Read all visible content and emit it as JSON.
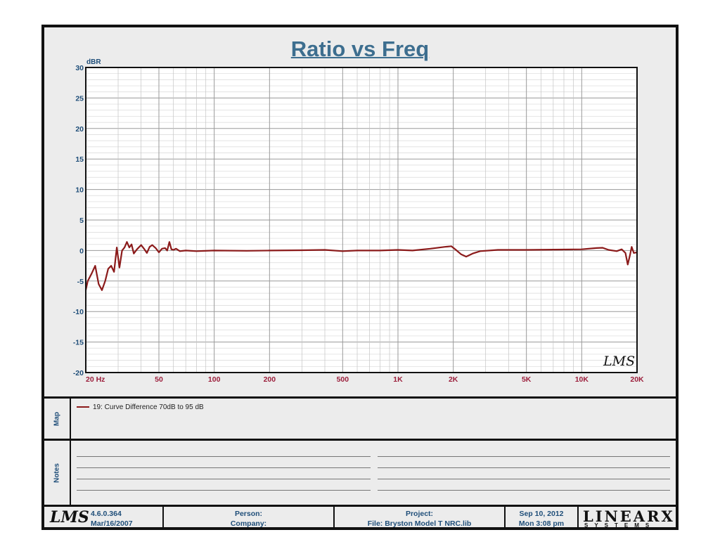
{
  "title": "Ratio vs Freq",
  "chart_data": {
    "type": "line",
    "title": "Ratio vs Freq",
    "ylabel": "dBR",
    "xscale": "log",
    "xlim": [
      20,
      20000
    ],
    "ylim": [
      -20,
      30
    ],
    "yticks": [
      30,
      25,
      20,
      15,
      10,
      5,
      0,
      -5,
      -10,
      -15,
      -20
    ],
    "xticks": [
      {
        "value": 20,
        "label": "20  Hz"
      },
      {
        "value": 50,
        "label": "50"
      },
      {
        "value": 100,
        "label": "100"
      },
      {
        "value": 200,
        "label": "200"
      },
      {
        "value": 500,
        "label": "500"
      },
      {
        "value": 1000,
        "label": "1K"
      },
      {
        "value": 2000,
        "label": "2K"
      },
      {
        "value": 5000,
        "label": "5K"
      },
      {
        "value": 10000,
        "label": "10K"
      },
      {
        "value": 20000,
        "label": "20K"
      }
    ],
    "grid": true,
    "series": [
      {
        "name": "19: Curve Difference 70dB to 95 dB",
        "color": "#8b1a1a",
        "points": [
          [
            20,
            -6.5
          ],
          [
            20.5,
            -5.0
          ],
          [
            21.5,
            -3.8
          ],
          [
            22.5,
            -2.5
          ],
          [
            23.5,
            -5.5
          ],
          [
            24.5,
            -6.5
          ],
          [
            25.5,
            -5.0
          ],
          [
            26.5,
            -3.0
          ],
          [
            27.5,
            -2.5
          ],
          [
            28.5,
            -3.5
          ],
          [
            29.5,
            0.5
          ],
          [
            30.5,
            -2.8
          ],
          [
            31.5,
            0.0
          ],
          [
            32.5,
            0.5
          ],
          [
            33.5,
            1.4
          ],
          [
            34.5,
            0.5
          ],
          [
            35.5,
            1.0
          ],
          [
            36.5,
            -0.5
          ],
          [
            38,
            0.2
          ],
          [
            40,
            0.9
          ],
          [
            41.5,
            0.3
          ],
          [
            43,
            -0.4
          ],
          [
            44.5,
            0.6
          ],
          [
            46,
            0.9
          ],
          [
            48,
            0.4
          ],
          [
            50,
            -0.3
          ],
          [
            52,
            0.3
          ],
          [
            54,
            0.4
          ],
          [
            55.5,
            0.0
          ],
          [
            57,
            1.4
          ],
          [
            58.5,
            0.2
          ],
          [
            60,
            0.1
          ],
          [
            62,
            0.3
          ],
          [
            65,
            -0.1
          ],
          [
            70,
            0.0
          ],
          [
            80,
            -0.1
          ],
          [
            100,
            0.0
          ],
          [
            150,
            -0.05
          ],
          [
            200,
            0.0
          ],
          [
            300,
            0.05
          ],
          [
            400,
            0.1
          ],
          [
            500,
            -0.1
          ],
          [
            600,
            0.0
          ],
          [
            800,
            0.0
          ],
          [
            1000,
            0.1
          ],
          [
            1200,
            0.0
          ],
          [
            1500,
            0.3
          ],
          [
            1800,
            0.6
          ],
          [
            1950,
            0.7
          ],
          [
            2050,
            0.2
          ],
          [
            2200,
            -0.6
          ],
          [
            2350,
            -1.0
          ],
          [
            2550,
            -0.5
          ],
          [
            2800,
            -0.1
          ],
          [
            3500,
            0.1
          ],
          [
            5000,
            0.1
          ],
          [
            7000,
            0.15
          ],
          [
            10000,
            0.2
          ],
          [
            12000,
            0.4
          ],
          [
            13000,
            0.45
          ],
          [
            14000,
            0.1
          ],
          [
            15500,
            -0.1
          ],
          [
            16500,
            0.2
          ],
          [
            17300,
            -0.4
          ],
          [
            17800,
            -2.3
          ],
          [
            18300,
            -0.8
          ],
          [
            18700,
            0.6
          ],
          [
            19200,
            -0.4
          ],
          [
            20000,
            -0.3
          ]
        ]
      }
    ]
  },
  "map": {
    "label": "Map",
    "legend": "19: Curve Difference 70dB to 95 dB"
  },
  "notes": {
    "label": "Notes"
  },
  "footer": {
    "version": "4.6.0.364",
    "build_date": "Mar/16/2007",
    "person_label": "Person:",
    "company_label": "Company:",
    "project_label": "Project:",
    "file_label": "File: Bryston Model T NRC.lib",
    "date": "Sep 10, 2012",
    "time": "Mon  3:08 pm",
    "brand_top": "LINEARX",
    "brand_bottom": "SYSTEMS",
    "lms_logo": "LMS"
  },
  "watermark": "LMS"
}
